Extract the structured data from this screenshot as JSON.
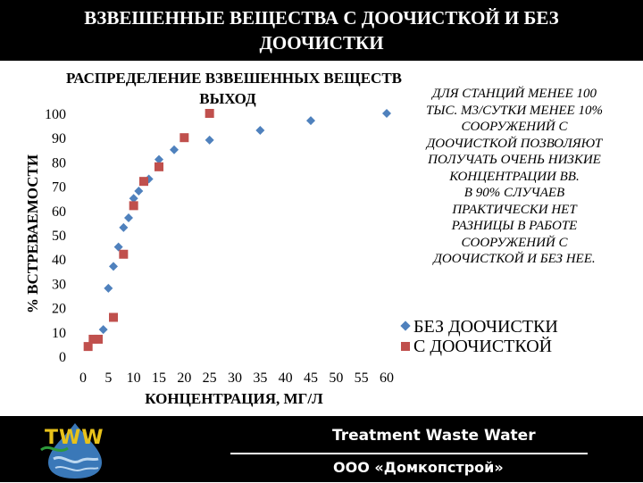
{
  "header": {
    "title_line1": "ВЗВЕШЕННЫЕ ВЕЩЕСТВА С ДООЧИСТКОЙ И БЕЗ",
    "title_line2": "ДООЧИСТКИ"
  },
  "chart_data": {
    "type": "scatter",
    "title_line1": "РАСПРЕДЕЛЕНИЕ ВЗВЕШЕННЫХ ВЕЩЕСТВ",
    "title_line2": "ВЫХОД",
    "xlabel": "КОНЦЕНТРАЦИЯ, МГ/Л",
    "ylabel": "% ВСТРЕВАЕМОСТИ",
    "xlim": [
      0,
      60
    ],
    "ylim": [
      0,
      100
    ],
    "x_ticks": [
      "0",
      "5",
      "10",
      "15",
      "20",
      "25",
      "30",
      "35",
      "40",
      "45",
      "50",
      "55",
      "60"
    ],
    "y_ticks": [
      "0",
      "10",
      "20",
      "30",
      "40",
      "50",
      "60",
      "70",
      "80",
      "90",
      "100"
    ],
    "grid": false,
    "legend_position": "right",
    "series": [
      {
        "name": "БЕЗ ДООЧИСТКИ",
        "marker": "diamond",
        "color": "#4f81bd",
        "points": [
          [
            3,
            7
          ],
          [
            4,
            11
          ],
          [
            5,
            28
          ],
          [
            6,
            37
          ],
          [
            7,
            45
          ],
          [
            8,
            53
          ],
          [
            9,
            57
          ],
          [
            10,
            65
          ],
          [
            11,
            68
          ],
          [
            13,
            73
          ],
          [
            15,
            81
          ],
          [
            18,
            85
          ],
          [
            25,
            89
          ],
          [
            35,
            93
          ],
          [
            45,
            97
          ],
          [
            60,
            100
          ]
        ]
      },
      {
        "name": "С ДООЧИСТКОЙ",
        "marker": "square",
        "color": "#c0504d",
        "points": [
          [
            1,
            4
          ],
          [
            2,
            7
          ],
          [
            3,
            7
          ],
          [
            6,
            16
          ],
          [
            8,
            42
          ],
          [
            10,
            62
          ],
          [
            12,
            72
          ],
          [
            15,
            78
          ],
          [
            20,
            90
          ],
          [
            25,
            100
          ]
        ]
      }
    ]
  },
  "note": {
    "lines": [
      "ДЛЯ СТАНЦИЙ МЕНЕЕ 100",
      "ТЫС. М3/СУТКИ МЕНЕЕ 10%",
      "СООРУЖЕНИЙ С",
      "ДООЧИСТКОЙ ПОЗВОЛЯЮТ",
      "ПОЛУЧАТЬ ОЧЕНЬ НИЗКИЕ",
      "КОНЦЕНТРАЦИИ ВВ.",
      "В 90% СЛУЧАЕВ",
      "ПРАКТИЧЕСКИ НЕТ",
      "РАЗНИЦЫ В РАБОТЕ",
      "СООРУЖЕНИЙ С",
      "ДООЧИСТКОЙ И  БЕЗ НЕЕ."
    ]
  },
  "footer": {
    "logo_text": "TWW",
    "line1": "Treatment Waste Water",
    "line2": "ООО «Домкопстрой»"
  },
  "colors": {
    "header_bg": "#000000",
    "footer_bg": "#000000",
    "logo": "#e8c21a",
    "series_without": "#4f81bd",
    "series_with": "#c0504d"
  }
}
